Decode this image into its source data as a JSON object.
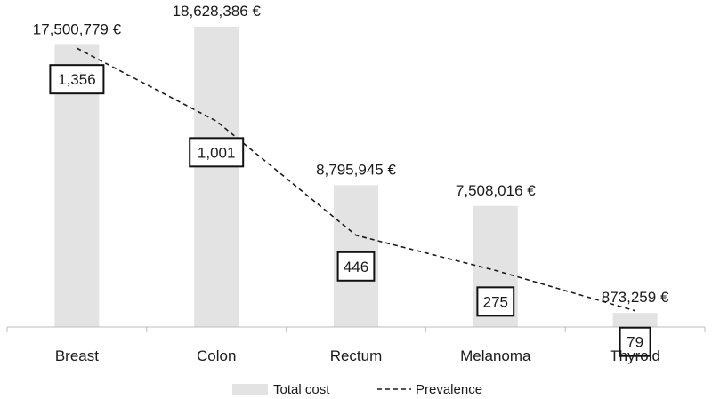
{
  "chart_data": {
    "type": "bar",
    "categories": [
      "Breast",
      "Colon",
      "Rectum",
      "Melanoma",
      "Thyroid"
    ],
    "series": [
      {
        "name": "Total cost",
        "kind": "bar",
        "values": [
          17500779,
          18628386,
          8795945,
          7508016,
          873259
        ],
        "labels": [
          "17,500,779 €",
          "18,628,386 €",
          "8,795,945 €",
          "7,508,016 €",
          "873,259 €"
        ],
        "color": "#e3e3e3"
      },
      {
        "name": "Prevalence",
        "kind": "line",
        "style": "dashed",
        "values": [
          1356,
          1001,
          446,
          275,
          79
        ],
        "labels": [
          "1,356",
          "1,001",
          "446",
          "275",
          "79"
        ],
        "color": "#1a1a1a"
      }
    ],
    "cost_axis_range": [
      0,
      18628386
    ],
    "prevalence_axis_range": [
      0,
      1400
    ],
    "legend": {
      "position": "bottom",
      "items": [
        "Total cost",
        "Prevalence"
      ]
    },
    "grid": false
  }
}
